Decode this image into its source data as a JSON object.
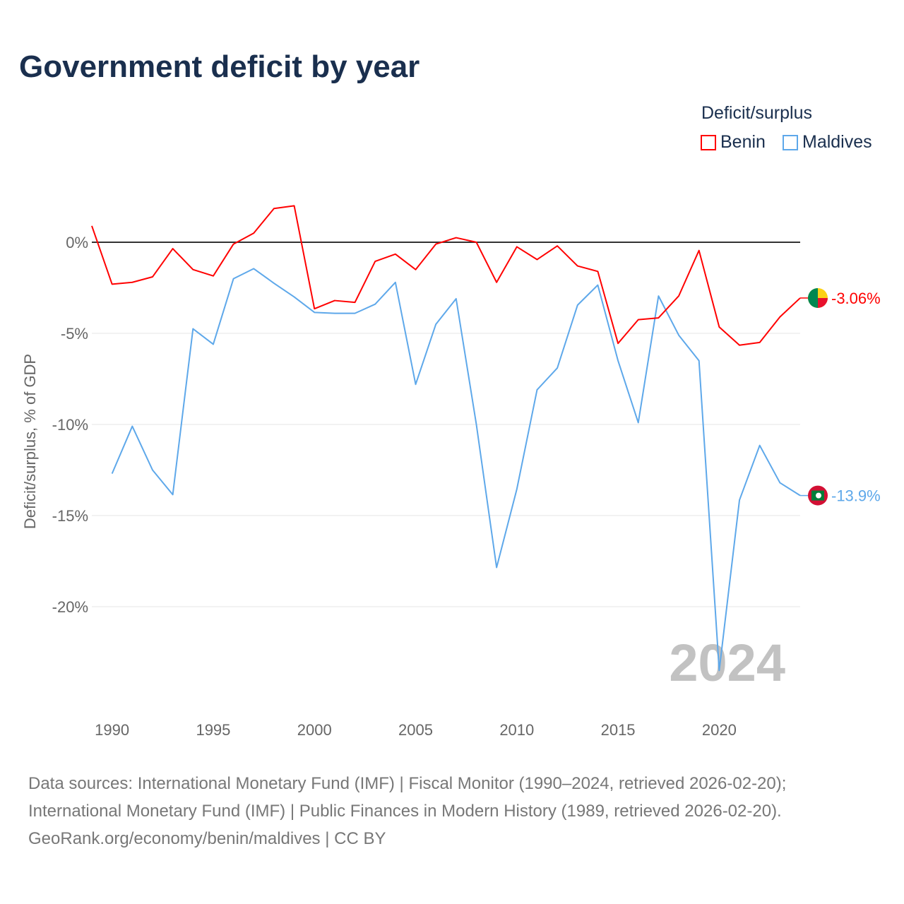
{
  "title": "Government deficit by year",
  "legend": {
    "title": "Deficit/surplus",
    "items": [
      {
        "name": "Benin",
        "color": "#ff0000"
      },
      {
        "name": "Maldives",
        "color": "#5ea8ea"
      }
    ]
  },
  "footer": {
    "line1": "Data sources: International Monetary Fund (IMF) | Fiscal Monitor (1990–2024, retrieved 2026-02-20);",
    "line2": "International Monetary Fund (IMF) | Public Finances in Modern History (1989, retrieved 2026-02-20).",
    "line3": "GeoRank.org/economy/benin/maldives | CC BY"
  },
  "chart_data": {
    "type": "line",
    "title": "Government deficit by year",
    "ylabel": "Deficit/surplus, % of GDP",
    "xlim": [
      1989,
      2024
    ],
    "ylim": [
      -25,
      3
    ],
    "x_ticks": [
      1990,
      1995,
      2000,
      2005,
      2010,
      2015,
      2020
    ],
    "y_ticks": [
      {
        "v": 0,
        "label": "0%"
      },
      {
        "v": -5,
        "label": "-5%"
      },
      {
        "v": -10,
        "label": "-10%"
      },
      {
        "v": -15,
        "label": "-15%"
      },
      {
        "v": -20,
        "label": "-20%"
      }
    ],
    "year_watermark": "2024",
    "series": [
      {
        "name": "Benin",
        "color": "#ff0000",
        "end_label": "-3.06%",
        "start": 1989,
        "values": [
          0.9,
          -2.3,
          -2.2,
          -1.9,
          -0.35,
          -1.5,
          -1.85,
          -0.1,
          0.5,
          1.85,
          2.0,
          -3.65,
          -3.2,
          -3.3,
          -1.05,
          -0.65,
          -1.5,
          -0.1,
          0.25,
          0,
          -2.2,
          -0.25,
          -0.95,
          -0.2,
          -1.3,
          -1.6,
          -5.55,
          -4.25,
          -4.15,
          -2.95,
          -0.45,
          -4.65,
          -5.65,
          -5.5,
          -4.1,
          -3.06
        ]
      },
      {
        "name": "Maldives",
        "color": "#5ea8ea",
        "end_label": "-13.9%",
        "start": 1990,
        "values": [
          -12.7,
          -10.1,
          -12.5,
          -13.85,
          -4.75,
          -5.6,
          -2.0,
          -1.45,
          -2.25,
          -3.0,
          -3.85,
          -3.9,
          -3.9,
          -3.4,
          -2.2,
          -7.8,
          -4.5,
          -3.1,
          -10.0,
          -17.85,
          -13.55,
          -8.1,
          -6.9,
          -3.45,
          -2.35,
          -6.5,
          -9.9,
          -2.95,
          -5.1,
          -6.5,
          -23.5,
          -14.15,
          -11.15,
          -13.2,
          -13.9
        ]
      }
    ]
  }
}
